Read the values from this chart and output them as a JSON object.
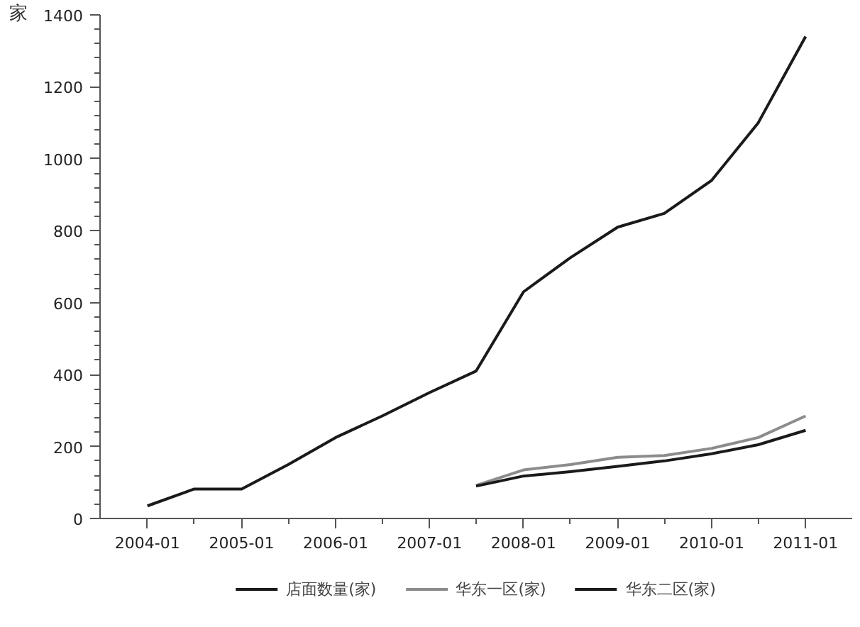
{
  "chart_data": {
    "type": "line",
    "ylabel": "家",
    "x": [
      "2004-01",
      "2004-07",
      "2005-01",
      "2005-07",
      "2006-01",
      "2006-07",
      "2007-01",
      "2007-07",
      "2008-01",
      "2008-07",
      "2009-01",
      "2009-07",
      "2010-01",
      "2010-07",
      "2011-01"
    ],
    "series": [
      {
        "name": "店面数量(家)",
        "color": "#1a1a1a",
        "values": [
          35,
          82,
          82,
          150,
          225,
          285,
          350,
          410,
          630,
          725,
          810,
          848,
          940,
          1100,
          1340
        ]
      },
      {
        "name": "华东一区(家)",
        "color": "#8c8c8c",
        "values": [
          null,
          null,
          null,
          null,
          null,
          null,
          null,
          92,
          135,
          150,
          170,
          175,
          195,
          225,
          285
        ]
      },
      {
        "name": "华东二区(家)",
        "color": "#1a1a1a",
        "values": [
          null,
          null,
          null,
          null,
          null,
          null,
          null,
          90,
          118,
          130,
          145,
          160,
          180,
          205,
          245
        ]
      }
    ],
    "xlim": [
      "2003-07",
      "2011-07"
    ],
    "xticks": [
      {
        "value": "2004-01",
        "label": "2004-01"
      },
      {
        "value": "2004-07",
        "label": null
      },
      {
        "value": "2005-01",
        "label": "2005-01"
      },
      {
        "value": "2005-07",
        "label": null
      },
      {
        "value": "2006-01",
        "label": "2006-01"
      },
      {
        "value": "2006-07",
        "label": null
      },
      {
        "value": "2007-01",
        "label": "2007-01"
      },
      {
        "value": "2007-07",
        "label": null
      },
      {
        "value": "2008-01",
        "label": "2008-01"
      },
      {
        "value": "2008-07",
        "label": null
      },
      {
        "value": "2009-01",
        "label": "2009-01"
      },
      {
        "value": "2009-07",
        "label": null
      },
      {
        "value": "2010-01",
        "label": "2010-01"
      },
      {
        "value": "2010-07",
        "label": null
      },
      {
        "value": "2011-01",
        "label": "2011-01"
      }
    ],
    "ylim": [
      0,
      1400
    ],
    "yticks": [
      0,
      {
        "value": 40,
        "label": null
      },
      {
        "value": 80,
        "label": null
      },
      {
        "value": 120,
        "label": null
      },
      {
        "value": 160,
        "label": null
      },
      200,
      {
        "value": 240,
        "label": null
      },
      {
        "value": 280,
        "label": null
      },
      {
        "value": 320,
        "label": null
      },
      {
        "value": 360,
        "label": null
      },
      400,
      {
        "value": 440,
        "label": null
      },
      {
        "value": 480,
        "label": null
      },
      {
        "value": 520,
        "label": null
      },
      {
        "value": 560,
        "label": null
      },
      600,
      {
        "value": 640,
        "label": null
      },
      {
        "value": 680,
        "label": null
      },
      {
        "value": 720,
        "label": null
      },
      {
        "value": 760,
        "label": null
      },
      800,
      {
        "value": 840,
        "label": null
      },
      {
        "value": 880,
        "label": null
      },
      {
        "value": 920,
        "label": null
      },
      {
        "value": 960,
        "label": null
      },
      1000,
      {
        "value": 1040,
        "label": null
      },
      {
        "value": 1080,
        "label": null
      },
      {
        "value": 1120,
        "label": null
      },
      {
        "value": 1160,
        "label": null
      },
      1200,
      {
        "value": 1240,
        "label": null
      },
      {
        "value": 1280,
        "label": null
      },
      {
        "value": 1320,
        "label": null
      },
      {
        "value": 1360,
        "label": null
      },
      1400
    ],
    "grid": false,
    "legend": "bottom",
    "marker": "none",
    "line_style": "solid"
  }
}
